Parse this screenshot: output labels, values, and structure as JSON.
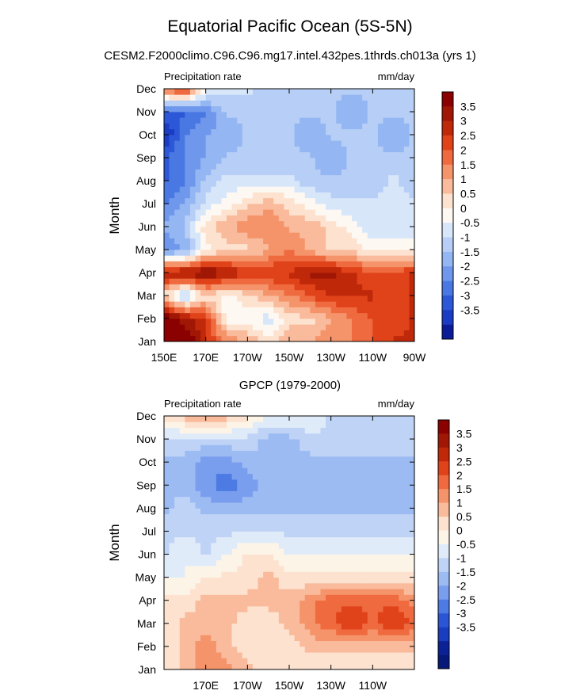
{
  "title": "Equatorial Pacific Ocean (5S-5N)",
  "subtitle": "CESM2.F2000climo.C96.C96.mg17.intel.432pes.1thrds.ch013a (yrs 1)",
  "colorbar": {
    "levels": [
      "3.5",
      "3",
      "2.5",
      "2",
      "1.5",
      "1",
      "0.5",
      "0",
      "-0.5",
      "-1",
      "-1.5",
      "-2",
      "-2.5",
      "-3",
      "-3.5"
    ],
    "colors_top": [
      "#8b0000",
      "#a01805",
      "#c0280a",
      "#e0421a",
      "#ef6a3f",
      "#f5946a",
      "#f9bb9c",
      "#fde2cf",
      "#fdf8f2",
      "#d8e6fa",
      "#b7cff6",
      "#94b6f2",
      "#6f98ec",
      "#4a78e3",
      "#2c58d7",
      "#1a3cc3",
      "#0a1c97"
    ],
    "colors_bottom": [
      "#8b0000",
      "#a01805",
      "#c0280a",
      "#e0421a",
      "#ef6a3f",
      "#f5946a",
      "#f9bb9c",
      "#fde2cf",
      "#fdf4e8",
      "#e0ebf9",
      "#bfd3f6",
      "#9cbbf3",
      "#7a9eee",
      "#4d7be3",
      "#2b55d4",
      "#1a3dc0",
      "#0b2196",
      "#061878"
    ]
  },
  "chart_data": [
    {
      "type": "heatmap",
      "title": "",
      "left_label": "Precipitation rate",
      "right_label": "mm/day",
      "xlabel": "",
      "ylabel": "Month",
      "x_range": [
        150,
        270
      ],
      "x_ticks": [
        "150E",
        "170E",
        "170W",
        "150W",
        "130W",
        "110W",
        "90W"
      ],
      "y_ticks": [
        "Jan",
        "Feb",
        "Mar",
        "Apr",
        "May",
        "Jun",
        "Jul",
        "Aug",
        "Sep",
        "Oct",
        "Nov",
        "Dec"
      ],
      "x": [
        150,
        160,
        170,
        180,
        190,
        200,
        210,
        220,
        230,
        240,
        250,
        260,
        270
      ],
      "y": [
        "Jan",
        "Feb",
        "Mar",
        "Apr",
        "May",
        "Jun",
        "Jul",
        "Aug",
        "Sep",
        "Oct",
        "Nov",
        "Dec"
      ],
      "z": [
        [
          4.0,
          4.0,
          2.5,
          1.5,
          1.0,
          0.5,
          1.0,
          1.0,
          1.5,
          1.5,
          2.0,
          2.5,
          2.5
        ],
        [
          4.0,
          3.0,
          2.5,
          0.0,
          0.0,
          -0.5,
          0.5,
          0.5,
          1.0,
          1.5,
          2.0,
          2.0,
          2.5
        ],
        [
          0.5,
          -1.0,
          0.5,
          0.0,
          0.5,
          1.0,
          1.5,
          2.0,
          2.5,
          2.5,
          2.5,
          2.0,
          2.5
        ],
        [
          3.0,
          3.0,
          3.5,
          3.0,
          2.5,
          2.5,
          2.5,
          3.0,
          3.0,
          2.5,
          2.0,
          2.0,
          2.5
        ],
        [
          -2.0,
          -1.5,
          0.0,
          0.5,
          0.5,
          1.0,
          1.5,
          1.0,
          0.5,
          0.5,
          0.0,
          0.0,
          0.0
        ],
        [
          -1.5,
          -1.0,
          0.5,
          1.0,
          1.5,
          1.5,
          1.0,
          1.0,
          0.5,
          0.0,
          -0.5,
          -0.5,
          -0.5
        ],
        [
          -2.0,
          -1.5,
          -0.5,
          0.0,
          0.5,
          1.0,
          0.5,
          0.0,
          -0.5,
          -0.5,
          -0.5,
          -0.5,
          -0.5
        ],
        [
          -2.5,
          -2.0,
          -1.0,
          -0.5,
          -0.5,
          -0.5,
          -0.5,
          -1.0,
          -1.0,
          -1.0,
          -1.0,
          -0.5,
          -1.0
        ],
        [
          -2.5,
          -2.0,
          -1.5,
          -1.0,
          -1.0,
          -1.0,
          -1.0,
          -1.0,
          -1.5,
          -1.0,
          -1.0,
          -1.0,
          -1.0
        ],
        [
          -3.5,
          -2.0,
          -1.5,
          -1.5,
          -1.0,
          -1.0,
          -1.0,
          -1.5,
          -1.0,
          -1.0,
          -1.0,
          -1.5,
          -1.0
        ],
        [
          -2.5,
          -2.5,
          -2.0,
          -1.0,
          -1.0,
          -1.0,
          -1.0,
          -1.0,
          -1.0,
          -1.5,
          -1.0,
          -1.0,
          -1.0
        ],
        [
          1.5,
          2.5,
          0.0,
          -0.5,
          -0.5,
          -1.0,
          -1.0,
          -1.0,
          -1.0,
          -1.0,
          -1.0,
          -1.0,
          -1.0
        ]
      ]
    },
    {
      "type": "heatmap",
      "title": "GPCP (1979-2000)",
      "left_label": "Precipitation rate",
      "right_label": "mm/day",
      "xlabel": "",
      "ylabel": "Month",
      "x_range": [
        150,
        270
      ],
      "x_ticks": [
        "170E",
        "170W",
        "150W",
        "130W",
        "110W"
      ],
      "y_ticks": [
        "Jan",
        "Feb",
        "Mar",
        "Apr",
        "May",
        "Jun",
        "Jul",
        "Aug",
        "Sep",
        "Oct",
        "Nov",
        "Dec"
      ],
      "x": [
        150,
        160,
        170,
        180,
        190,
        200,
        210,
        220,
        230,
        240,
        250,
        260,
        270
      ],
      "y": [
        "Jan",
        "Feb",
        "Mar",
        "Apr",
        "May",
        "Jun",
        "Jul",
        "Aug",
        "Sep",
        "Oct",
        "Nov",
        "Dec"
      ],
      "z": [
        [
          0.5,
          1.0,
          1.5,
          1.5,
          1.0,
          0.5,
          0.5,
          0.5,
          0.5,
          0.5,
          0.5,
          0.5,
          0.5
        ],
        [
          0.5,
          1.0,
          1.5,
          1.0,
          0.5,
          0.5,
          0.5,
          1.0,
          1.0,
          1.0,
          1.0,
          1.0,
          1.0
        ],
        [
          0.5,
          1.0,
          1.0,
          1.0,
          0.5,
          0.5,
          1.0,
          1.5,
          2.0,
          2.5,
          2.0,
          2.5,
          2.0
        ],
        [
          0.5,
          0.5,
          1.0,
          1.0,
          1.0,
          1.0,
          1.0,
          1.5,
          2.0,
          2.0,
          2.0,
          2.0,
          1.5
        ],
        [
          0.0,
          0.0,
          0.5,
          0.5,
          0.5,
          1.0,
          0.5,
          0.5,
          0.5,
          0.5,
          0.5,
          0.5,
          0.5
        ],
        [
          -0.5,
          0.0,
          -0.5,
          0.0,
          0.5,
          0.5,
          0.0,
          0.0,
          0.0,
          0.0,
          0.0,
          0.0,
          0.0
        ],
        [
          -0.5,
          -0.5,
          -0.5,
          -0.5,
          -0.5,
          -0.5,
          -0.5,
          -0.5,
          -0.5,
          -0.5,
          -0.5,
          -0.5,
          -0.5
        ],
        [
          -1.0,
          -0.5,
          -1.0,
          -1.0,
          -1.0,
          -1.0,
          -1.0,
          -1.0,
          -1.0,
          -1.0,
          -1.0,
          -1.0,
          -1.0
        ],
        [
          -1.0,
          -1.0,
          -1.5,
          -2.0,
          -1.5,
          -1.0,
          -1.0,
          -1.0,
          -1.0,
          -1.0,
          -1.0,
          -1.0,
          -1.0
        ],
        [
          -1.0,
          -1.0,
          -1.5,
          -1.5,
          -1.0,
          -1.0,
          -1.0,
          -1.0,
          -1.0,
          -1.0,
          -1.0,
          -1.0,
          -1.0
        ],
        [
          -0.5,
          -0.5,
          -0.5,
          -0.5,
          -0.5,
          -1.0,
          -1.0,
          -0.5,
          -0.5,
          -0.5,
          -0.5,
          -0.5,
          -0.5
        ],
        [
          0.5,
          1.0,
          1.5,
          1.0,
          0.5,
          0.0,
          0.0,
          0.0,
          -0.5,
          -0.5,
          -0.5,
          -0.5,
          -0.5
        ]
      ]
    }
  ]
}
